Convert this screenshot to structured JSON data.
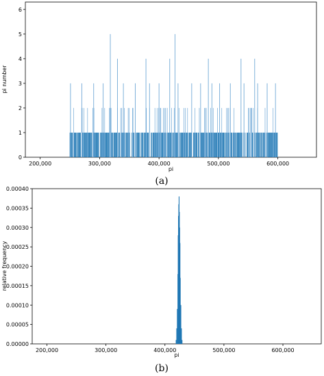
{
  "chart_data": [
    {
      "type": "bar",
      "panel_label": "(a)",
      "xlabel": "pi",
      "ylabel": "pi number",
      "xlim": [
        175000,
        665000
      ],
      "ylim": [
        0,
        6.3
      ],
      "xticks": [
        200000,
        300000,
        400000,
        500000,
        600000
      ],
      "xtick_labels": [
        "200,000",
        "300,000",
        "400,000",
        "500,000",
        "600,000"
      ],
      "yticks": [
        0,
        1,
        2,
        3,
        4,
        5,
        6
      ],
      "ytick_labels": [
        "0",
        "1",
        "2",
        "3",
        "4",
        "5",
        "6"
      ],
      "bar_color": "#1f77b4",
      "grid": false,
      "data_range": [
        250000,
        600000
      ],
      "peaks": [
        {
          "x": 318000,
          "y": 5
        },
        {
          "x": 427000,
          "y": 5
        },
        {
          "x": 330000,
          "y": 4
        },
        {
          "x": 378000,
          "y": 4
        },
        {
          "x": 418000,
          "y": 4
        },
        {
          "x": 483000,
          "y": 4
        },
        {
          "x": 538000,
          "y": 4
        },
        {
          "x": 561000,
          "y": 4
        },
        {
          "x": 251000,
          "y": 3
        },
        {
          "x": 270000,
          "y": 3
        },
        {
          "x": 290000,
          "y": 3
        },
        {
          "x": 306000,
          "y": 3
        },
        {
          "x": 340000,
          "y": 3
        },
        {
          "x": 360000,
          "y": 3
        },
        {
          "x": 384000,
          "y": 3
        },
        {
          "x": 400000,
          "y": 3
        },
        {
          "x": 432000,
          "y": 3
        },
        {
          "x": 455000,
          "y": 3
        },
        {
          "x": 470000,
          "y": 3
        },
        {
          "x": 489000,
          "y": 3
        },
        {
          "x": 502000,
          "y": 3
        },
        {
          "x": 520000,
          "y": 3
        },
        {
          "x": 543000,
          "y": 3
        },
        {
          "x": 566000,
          "y": 3
        },
        {
          "x": 582000,
          "y": 3
        },
        {
          "x": 596000,
          "y": 3
        }
      ]
    },
    {
      "type": "bar",
      "panel_label": "(b)",
      "xlabel": "pi",
      "ylabel": "relative frequency",
      "xlim": [
        175000,
        665000
      ],
      "ylim": [
        0,
        0.0004
      ],
      "xticks": [
        200000,
        300000,
        400000,
        500000,
        600000
      ],
      "xtick_labels": [
        "200,000",
        "300,000",
        "400,000",
        "500,000",
        "600,000"
      ],
      "yticks": [
        0,
        5e-05,
        0.0001,
        0.00015,
        0.0002,
        0.00025,
        0.0003,
        0.00035,
        0.0004
      ],
      "ytick_labels": [
        "0.00000",
        "0.00005",
        "0.00010",
        "0.00015",
        "0.00020",
        "0.00025",
        "0.00030",
        "0.00035",
        "0.00040"
      ],
      "bar_color": "#1f77b4",
      "grid": false,
      "x": [
        419000,
        420000,
        421000,
        422000,
        422500,
        423000,
        423500,
        424000,
        424500,
        425000,
        425500,
        426000,
        427000,
        428000,
        429000
      ],
      "values": [
        1e-05,
        4e-05,
        9e-05,
        0.00018,
        0.00028,
        0.00033,
        0.00036,
        0.00038,
        0.00034,
        0.0003,
        0.00026,
        0.00017,
        0.0001,
        4e-05,
        1e-05
      ]
    }
  ]
}
